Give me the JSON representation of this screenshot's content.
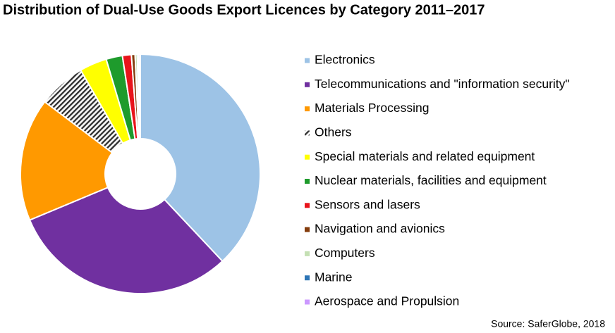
{
  "chart_data": {
    "type": "pie",
    "title": "Distribution of Dual-Use Goods Export Licences by Category 2011–2017",
    "source": "Source: SaferGlobe, 2018",
    "donut": true,
    "categories": [
      "Electronics",
      "Telecommunications and \"information security\"",
      "Materials Processing",
      "Others",
      "Special materials and related equipment",
      "Nuclear materials, facilities and equipment",
      "Sensors and lasers",
      "Navigation and avionics",
      "Computers",
      "Marine",
      "Aerospace and Propulsion"
    ],
    "values": [
      38,
      30.7,
      16.6,
      6.4,
      3.7,
      2.2,
      1.2,
      0.5,
      0.3,
      0.2,
      0.2
    ],
    "colors": [
      "#9dc3e6",
      "#7030a0",
      "#ff9900",
      "#333333",
      "#ffff00",
      "#1e9b2c",
      "#e8141b",
      "#843c0c",
      "#c5e0b4",
      "#2e75b6",
      "#cc99ff"
    ],
    "patterns": [
      null,
      null,
      null,
      "hatch",
      null,
      null,
      null,
      null,
      null,
      null,
      null
    ]
  }
}
